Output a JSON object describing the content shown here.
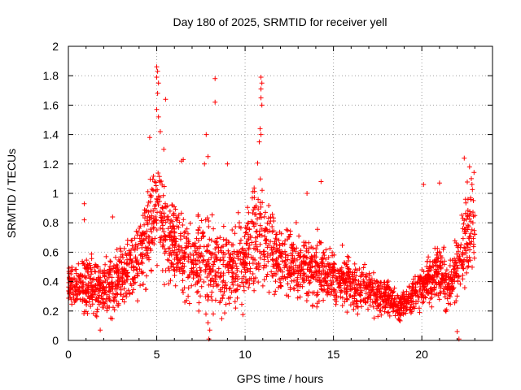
{
  "chart_data": {
    "type": "scatter",
    "title": "Day 180 of 2025, SRMTID for receiver yell",
    "xlabel": "GPS time / hours",
    "ylabel": "SRMTID / TECUs",
    "xlim": [
      0,
      24
    ],
    "ylim": [
      0,
      2
    ],
    "grid": true,
    "marker": "+",
    "color": "#ff0000",
    "x_ticks": [
      0,
      5,
      10,
      15,
      20
    ],
    "x_tick_labels": [
      "0",
      "5",
      "10",
      "15",
      "20"
    ],
    "y_ticks": [
      0,
      0.2,
      0.4,
      0.6,
      0.8,
      1,
      1.2,
      1.4,
      1.6,
      1.8,
      2
    ],
    "y_tick_labels": [
      "0",
      "0.2",
      "0.4",
      "0.6",
      "0.8",
      "1",
      "1.2",
      "1.4",
      "1.6",
      "1.8",
      "2"
    ],
    "series": [
      {
        "name": "SRMTID",
        "profile_hours": [
          0,
          1,
          2,
          3,
          4,
          4.5,
          5,
          5.5,
          6,
          7,
          8,
          9,
          10,
          10.8,
          11.5,
          12,
          13,
          14,
          15,
          16,
          17,
          18,
          18.7,
          19.5,
          20,
          21,
          21.5,
          22,
          22.5,
          23
        ],
        "profile_center": [
          0.36,
          0.38,
          0.33,
          0.42,
          0.55,
          0.75,
          0.88,
          0.78,
          0.66,
          0.55,
          0.52,
          0.5,
          0.55,
          0.75,
          0.6,
          0.52,
          0.5,
          0.48,
          0.44,
          0.38,
          0.33,
          0.3,
          0.23,
          0.3,
          0.38,
          0.47,
          0.35,
          0.45,
          0.72,
          0.8
        ],
        "profile_spread": [
          0.12,
          0.15,
          0.15,
          0.18,
          0.22,
          0.28,
          0.3,
          0.28,
          0.26,
          0.26,
          0.26,
          0.25,
          0.27,
          0.3,
          0.25,
          0.22,
          0.2,
          0.18,
          0.16,
          0.14,
          0.12,
          0.11,
          0.08,
          0.1,
          0.13,
          0.16,
          0.15,
          0.2,
          0.25,
          0.25
        ],
        "n_points": 2600,
        "outliers": [
          [
            5.0,
            1.86
          ],
          [
            5.05,
            1.83
          ],
          [
            5.0,
            1.79
          ],
          [
            5.1,
            1.75
          ],
          [
            5.05,
            1.68
          ],
          [
            5.0,
            1.57
          ],
          [
            5.1,
            1.52
          ],
          [
            5.5,
            1.64
          ],
          [
            5.2,
            1.42
          ],
          [
            4.6,
            1.38
          ],
          [
            5.4,
            1.3
          ],
          [
            8.3,
            1.78
          ],
          [
            8.3,
            1.62
          ],
          [
            7.8,
            1.4
          ],
          [
            7.7,
            1.2
          ],
          [
            7.9,
            1.25
          ],
          [
            10.9,
            1.79
          ],
          [
            10.95,
            1.75
          ],
          [
            10.9,
            1.71
          ],
          [
            10.9,
            1.65
          ],
          [
            10.95,
            1.6
          ],
          [
            10.85,
            1.44
          ],
          [
            10.9,
            1.4
          ],
          [
            10.8,
            1.35
          ],
          [
            6.5,
            1.23
          ],
          [
            6.4,
            1.22
          ],
          [
            9.0,
            1.2
          ],
          [
            20.1,
            1.06
          ],
          [
            21.0,
            1.07
          ],
          [
            22.4,
            1.24
          ],
          [
            22.7,
            1.18
          ],
          [
            22.8,
            1.1
          ],
          [
            14.3,
            1.08
          ],
          [
            13.5,
            1.0
          ],
          [
            8.0,
            0.07
          ],
          [
            7.9,
            0.12
          ],
          [
            7.95,
            0.01
          ],
          [
            8.2,
            0.18
          ],
          [
            1.8,
            0.07
          ],
          [
            0.9,
            0.93
          ],
          [
            0.9,
            0.82
          ],
          [
            2.5,
            0.84
          ],
          [
            22.0,
            0.06
          ],
          [
            22.1,
            0.01
          ]
        ]
      }
    ]
  }
}
